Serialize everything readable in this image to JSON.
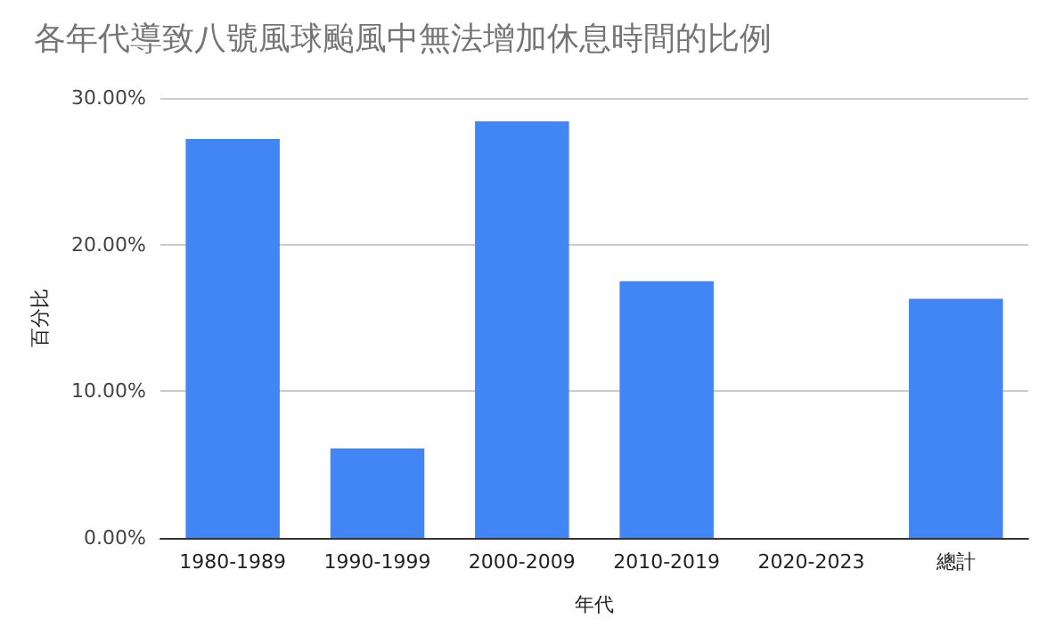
{
  "chart_data": {
    "type": "bar",
    "title": "各年代導致八號風球颱風中無法增加休息時間的比例",
    "xlabel": "年代",
    "ylabel": "百分比",
    "categories": [
      "1980-1989",
      "1990-1999",
      "2000-2009",
      "2010-2019",
      "2020-2023",
      "總計"
    ],
    "values": [
      27.2,
      6.1,
      28.4,
      17.5,
      0,
      16.3
    ],
    "color": "#4285f4",
    "ylim": [
      0,
      30
    ],
    "yticks": [
      {
        "value": 0,
        "label": "0.00%"
      },
      {
        "value": 10,
        "label": "10.00%"
      },
      {
        "value": 20,
        "label": "20.00%"
      },
      {
        "value": 30,
        "label": "30.00%"
      }
    ],
    "grid": "y"
  }
}
